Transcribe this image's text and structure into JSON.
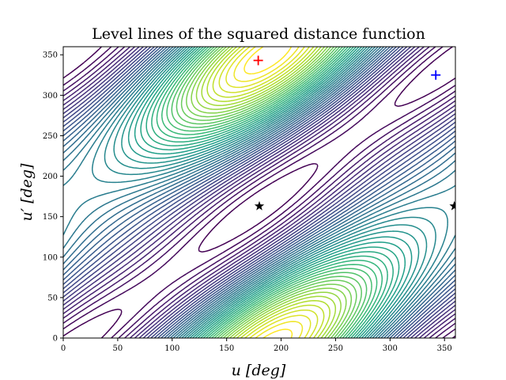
{
  "chart_data": {
    "type": "contour",
    "title": "Level lines of the squared distance function",
    "xlabel": "u [deg]",
    "ylabel": "u′ [deg]",
    "xlim": [
      0,
      360
    ],
    "ylim": [
      0,
      360
    ],
    "xticks": [
      "0",
      "50",
      "100",
      "150",
      "200",
      "250",
      "300",
      "350"
    ],
    "yticks": [
      "0",
      "50",
      "100",
      "150",
      "200",
      "250",
      "300",
      "350"
    ],
    "colormap": "viridis",
    "grid": false,
    "markers": [
      {
        "kind": "plus",
        "color": "#ff0000",
        "u": 179,
        "u_prime": 343
      },
      {
        "kind": "plus",
        "color": "#0000ff",
        "u": 342,
        "u_prime": 325
      },
      {
        "kind": "star",
        "color": "#000000",
        "u": 180,
        "u_prime": 163
      },
      {
        "kind": "star",
        "color": "#000000",
        "u": 359,
        "u_prime": 163
      }
    ]
  }
}
